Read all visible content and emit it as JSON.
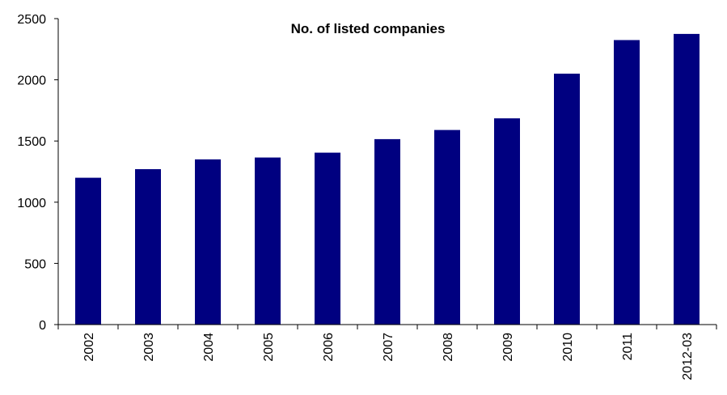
{
  "colors": {
    "bar": "#000080",
    "axis": "#000000",
    "background": "#ffffff"
  },
  "chart_data": {
    "type": "bar",
    "title": "No. of listed companies",
    "xlabel": "",
    "ylabel": "",
    "categories": [
      "2002",
      "2003",
      "2004",
      "2005",
      "2006",
      "2007",
      "2008",
      "2009",
      "2010",
      "2011",
      "2012-03"
    ],
    "values": [
      1200,
      1270,
      1350,
      1365,
      1405,
      1515,
      1590,
      1685,
      2050,
      2325,
      2375
    ],
    "ylim": [
      0,
      2500
    ],
    "yticks": [
      "0",
      "500",
      "1000",
      "1500",
      "2000",
      "2500"
    ],
    "grid": false,
    "legend": "none"
  }
}
